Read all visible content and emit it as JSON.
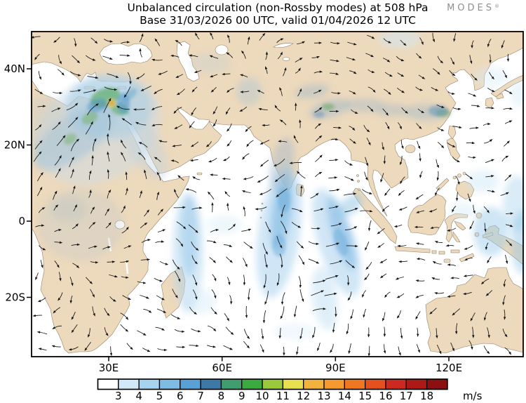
{
  "header": {
    "title": "Unbalanced circulation (non-Rossby modes) at 508 hPa",
    "subtitle": "Base 31/03/2026 00 UTC, valid 01/04/2026 12 UTC",
    "brand": "MODES",
    "brand_mark": "®"
  },
  "chart_data": {
    "type": "heatmap",
    "variant": "filled-contour wind-speed map with overlaid wind vector arrows",
    "title": "Unbalanced circulation (non-Rossby modes) at 508 hPa",
    "subtitle": "Base 31/03/2026 00 UTC, valid 01/04/2026 12 UTC",
    "field": "wind speed of the unbalanced (non-Rossby) circulation",
    "unit": "m/s",
    "map_extent": {
      "lon_min_deg_e": 10,
      "lon_max_deg_e": 140,
      "lat_min_deg": -35.5,
      "lat_max_deg": 49.8
    },
    "grid": "off",
    "x_ticks": [
      {
        "lon": 30,
        "label": "30E"
      },
      {
        "lon": 60,
        "label": "60E"
      },
      {
        "lon": 90,
        "label": "90E"
      },
      {
        "lon": 120,
        "label": "120E"
      }
    ],
    "y_ticks": [
      {
        "lat": 40,
        "label": "40N"
      },
      {
        "lat": 20,
        "label": "20N"
      },
      {
        "lat": 0,
        "label": "0"
      },
      {
        "lat": -20,
        "label": "20S"
      }
    ],
    "colorbar": {
      "unit_label": "m/s",
      "position": "bottom",
      "tick_labels": [
        "3",
        "4",
        "5",
        "6",
        "7",
        "8",
        "9",
        "10",
        "11",
        "12",
        "13",
        "14",
        "15",
        "16",
        "17",
        "18"
      ],
      "segment_colors": [
        "#ffffff",
        "#d2e9f7",
        "#a6d3ef",
        "#7ebce4",
        "#58a0d6",
        "#3c79a8",
        "#3f9d6e",
        "#3cab3f",
        "#9aca3c",
        "#e8e04e",
        "#f2b33d",
        "#f59a31",
        "#ef7721",
        "#e5511e",
        "#cc2a20",
        "#ad1917",
        "#8d0f0f"
      ]
    },
    "land_color": "#edd9bc",
    "ocean_color": "#ffffff",
    "features": [
      {
        "region": "Eastern Mediterranean / Levant ~33E 32N",
        "pattern": "intense cyclonic vortex with spiraling inflow",
        "speed_m_s": "core 12-14 (orange spot), ring 8-10 (green), halo 4-7 (blue)"
      },
      {
        "region": "Northeast Africa band from ~15E 12N toward the vortex",
        "pattern": "northeastward inflow band",
        "speed_m_s": "5-9"
      },
      {
        "region": "Red Sea and Arabia",
        "pattern": "weak bluish tint",
        "speed_m_s": "4-5"
      },
      {
        "region": "Hindu Kush - Himalaya - Tibetan Plateau 70-105E 28-38N",
        "pattern": "patchy shading along the mountains",
        "speed_m_s": "4-8 with local green maxima ~8-9 near 88E and 100E"
      },
      {
        "region": "Western Indian Ocean off Somalia / north of Madagascar 48-55E 0-25S",
        "pattern": "southward flow band along the coast",
        "speed_m_s": "4-6"
      },
      {
        "region": "South of India / central Indian Ocean 70-80E 10N-20S",
        "pattern": "strong southward flow band",
        "speed_m_s": "5-8"
      },
      {
        "region": "Eastern Indian Ocean west of Sumatra 85-97E 20S-5N",
        "pattern": "strong northeastward flow band",
        "speed_m_s": "5-8"
      },
      {
        "region": "Maluku / New Guinea 125-140E 10S-5N",
        "pattern": "northward flow patches",
        "speed_m_s": "4-7"
      },
      {
        "region": "remaining domain",
        "pattern": "weak variable unbalanced winds, curved black arrows everywhere",
        "speed_m_s": "below 3-4 (white)"
      }
    ],
    "vectors": {
      "style": "small curved black arrows with filled heads covering the whole domain",
      "approx_grid_spacing_px": 24
    }
  }
}
